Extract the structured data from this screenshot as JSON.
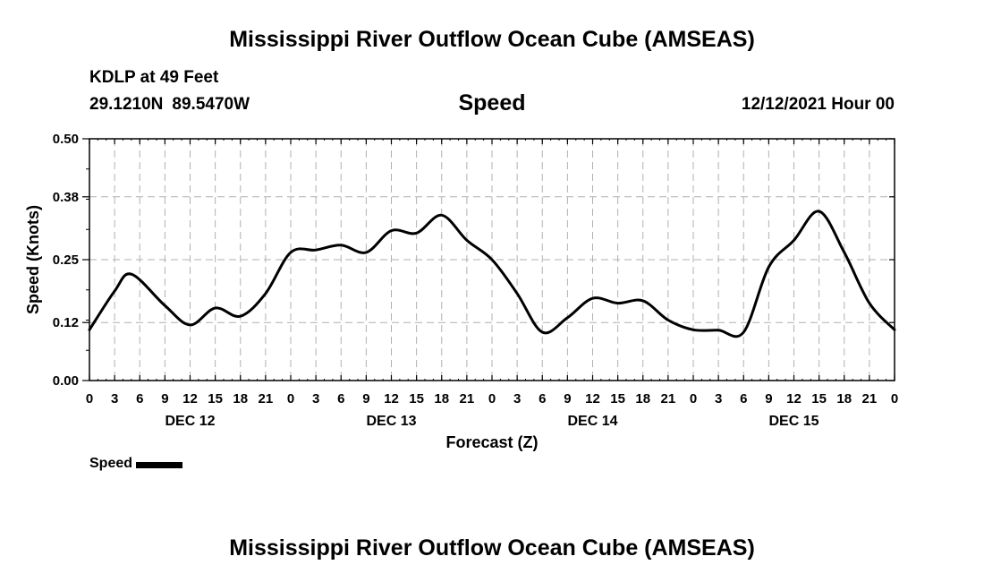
{
  "header": {
    "title": "Mississippi River Outflow Ocean Cube (AMSEAS)",
    "station": "KDLP at 49 Feet",
    "latitude": "29.1210N",
    "longitude": "89.5470W",
    "datetime": "12/12/2021 Hour 00"
  },
  "footer": {
    "title": "Mississippi River Outflow Ocean Cube (AMSEAS)"
  },
  "legend": {
    "label": "Speed"
  },
  "colors": {
    "line": "#000000",
    "grid": "#b0b0b0",
    "background": "#ffffff"
  },
  "chart_data": {
    "type": "line",
    "title": "Speed",
    "xlabel": "Forecast (Z)",
    "ylabel": "Speed (Knots)",
    "xlim": [
      0,
      96
    ],
    "ylim": [
      0,
      0.5
    ],
    "grid": true,
    "y_ticks": [
      0.0,
      0.12,
      0.25,
      0.38,
      0.5
    ],
    "y_tick_labels": [
      "0.00",
      "0.12",
      "0.25",
      "0.38",
      "0.50"
    ],
    "x_ticks": [
      0,
      3,
      6,
      9,
      12,
      15,
      18,
      21,
      24,
      27,
      30,
      33,
      36,
      39,
      42,
      45,
      48,
      51,
      54,
      57,
      60,
      63,
      66,
      69,
      72,
      75,
      78,
      81,
      84,
      87,
      90,
      93,
      96
    ],
    "x_tick_labels": [
      "0",
      "3",
      "6",
      "9",
      "12",
      "15",
      "18",
      "21",
      "0",
      "3",
      "6",
      "9",
      "12",
      "15",
      "18",
      "21",
      "0",
      "3",
      "6",
      "9",
      "12",
      "15",
      "18",
      "21",
      "0",
      "3",
      "6",
      "9",
      "12",
      "15",
      "18",
      "21",
      "0"
    ],
    "day_labels": [
      {
        "label": "DEC 12",
        "x": 12
      },
      {
        "label": "DEC 13",
        "x": 36
      },
      {
        "label": "DEC 14",
        "x": 60
      },
      {
        "label": "DEC 15",
        "x": 84
      }
    ],
    "legend_position": "bottom-left",
    "series": [
      {
        "name": "Speed",
        "x": [
          0,
          3,
          5,
          9,
          12,
          15,
          18,
          21,
          24,
          27,
          30,
          33,
          36,
          39,
          42,
          45,
          48,
          51,
          54,
          57,
          60,
          63,
          66,
          69,
          72,
          75,
          78,
          81,
          84,
          87,
          90,
          93,
          96
        ],
        "y": [
          0.105,
          0.185,
          0.22,
          0.155,
          0.115,
          0.15,
          0.133,
          0.18,
          0.265,
          0.27,
          0.28,
          0.265,
          0.31,
          0.305,
          0.342,
          0.29,
          0.25,
          0.18,
          0.1,
          0.13,
          0.17,
          0.16,
          0.165,
          0.125,
          0.105,
          0.104,
          0.1,
          0.235,
          0.29,
          0.35,
          0.265,
          0.16,
          0.105
        ]
      }
    ]
  }
}
